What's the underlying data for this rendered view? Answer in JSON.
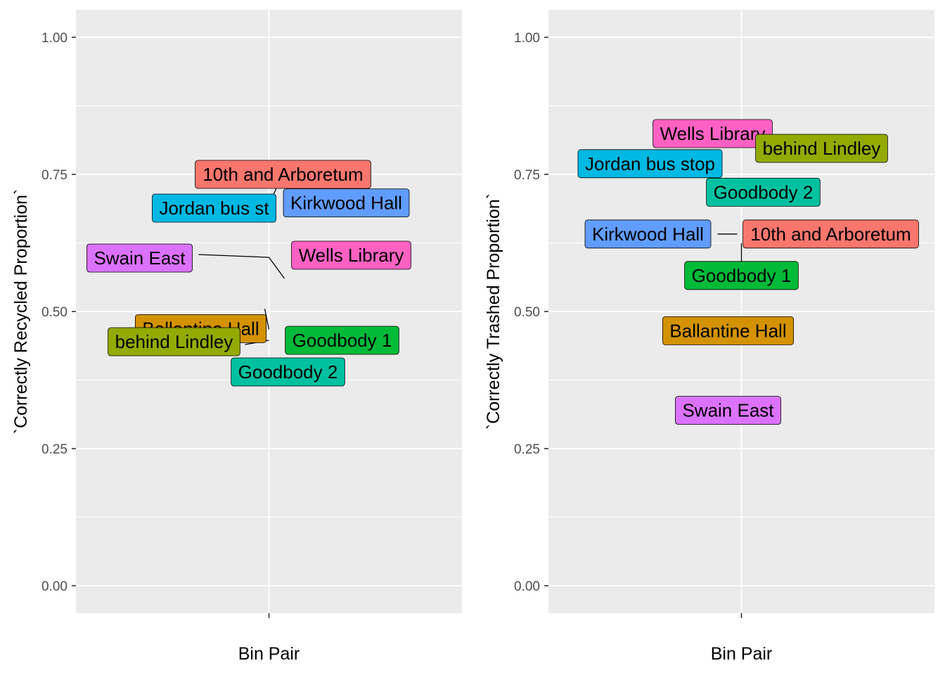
{
  "chart_data": [
    {
      "type": "scatter",
      "title": "",
      "xlabel": "Bin Pair",
      "ylabel": "`Correctly Recycled Proportion`",
      "x_categories": [
        ""
      ],
      "ylim": [
        -0.05,
        1.05
      ],
      "yticks": [
        0.0,
        0.25,
        0.5,
        0.75,
        1.0
      ],
      "ytick_labels": [
        "0.00",
        "0.25",
        "0.50",
        "0.75",
        "1.00"
      ],
      "grid": true,
      "legend": "none",
      "points": [
        {
          "label": "10th and Arboretum",
          "y": 0.75,
          "color": "#F8766D"
        },
        {
          "label": "Jordan bus stop",
          "display": "Jordan bus st",
          "y": 0.7,
          "color": "#00B9E3"
        },
        {
          "label": "Kirkwood Hall",
          "y": 0.68,
          "color": "#619CFF"
        },
        {
          "label": "Swain East",
          "y": 0.6,
          "color": "#DB72FB"
        },
        {
          "label": "Wells Library",
          "y": 0.6,
          "color": "#FF61C3"
        },
        {
          "label": "Ballantine Hall",
          "y": 0.47,
          "color": "#D39200"
        },
        {
          "label": "behind Lindley",
          "y": 0.45,
          "color": "#93AA00"
        },
        {
          "label": "Goodbody 1",
          "y": 0.45,
          "color": "#00BA38"
        },
        {
          "label": "Goodbody 2",
          "y": 0.4,
          "color": "#00C19F"
        }
      ]
    },
    {
      "type": "scatter",
      "title": "",
      "xlabel": "Bin Pair",
      "ylabel": "`Correctly Trashed Proportion`",
      "x_categories": [
        ""
      ],
      "ylim": [
        -0.05,
        1.05
      ],
      "yticks": [
        0.0,
        0.25,
        0.5,
        0.75,
        1.0
      ],
      "ytick_labels": [
        "0.00",
        "0.25",
        "0.50",
        "0.75",
        "1.00"
      ],
      "grid": true,
      "legend": "none",
      "points": [
        {
          "label": "Wells Library",
          "y": 0.8,
          "color": "#FF61C3"
        },
        {
          "label": "behind Lindley",
          "y": 0.8,
          "color": "#93AA00"
        },
        {
          "label": "Jordan bus stop",
          "y": 0.79,
          "color": "#00B9E3"
        },
        {
          "label": "Goodbody 2",
          "y": 0.72,
          "color": "#00C19F"
        },
        {
          "label": "Kirkwood Hall",
          "y": 0.64,
          "color": "#619CFF"
        },
        {
          "label": "10th and Arboretum",
          "y": 0.64,
          "color": "#F8766D"
        },
        {
          "label": "Goodbody 1",
          "y": 0.59,
          "color": "#00BA38"
        },
        {
          "label": "Ballantine Hall",
          "y": 0.47,
          "color": "#D39200"
        },
        {
          "label": "Swain East",
          "y": 0.33,
          "color": "#DB72FB"
        }
      ]
    }
  ]
}
